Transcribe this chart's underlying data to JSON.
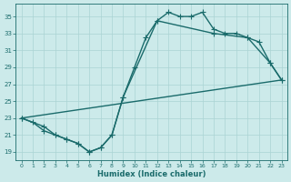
{
  "title": "",
  "xlabel": "Humidex (Indice chaleur)",
  "bg_color": "#cceaea",
  "line_color": "#1a6b6b",
  "grid_color": "#aad4d4",
  "xlim": [
    -0.5,
    23.5
  ],
  "ylim": [
    18,
    36.5
  ],
  "yticks": [
    19,
    21,
    23,
    25,
    27,
    29,
    31,
    33,
    35
  ],
  "xticks": [
    0,
    1,
    2,
    3,
    4,
    5,
    6,
    7,
    8,
    9,
    10,
    11,
    12,
    13,
    14,
    15,
    16,
    17,
    18,
    19,
    20,
    21,
    22,
    23
  ],
  "line1_x": [
    0,
    1,
    2,
    3,
    4,
    5,
    6,
    7,
    8,
    9,
    10,
    11,
    12,
    13,
    14,
    15,
    16,
    17,
    18,
    19,
    20,
    21,
    22,
    23
  ],
  "line1_y": [
    23.0,
    22.5,
    21.5,
    21.0,
    20.5,
    20.0,
    19.0,
    19.5,
    21.0,
    25.5,
    29.0,
    32.5,
    34.5,
    35.5,
    35.0,
    35.0,
    35.5,
    33.5,
    33.0,
    33.0,
    32.5,
    32.0,
    29.5,
    27.5
  ],
  "line2_x": [
    0,
    23
  ],
  "line2_y": [
    23.0,
    27.5
  ],
  "line3_x": [
    0,
    2,
    3,
    4,
    5,
    6,
    7,
    8,
    9,
    12,
    17,
    20,
    22,
    23
  ],
  "line3_y": [
    23.0,
    22.0,
    21.0,
    20.5,
    20.0,
    19.0,
    19.5,
    21.0,
    25.5,
    34.5,
    33.0,
    32.5,
    29.5,
    27.5
  ],
  "marker": "+",
  "markersize": 4,
  "linewidth": 1.0
}
